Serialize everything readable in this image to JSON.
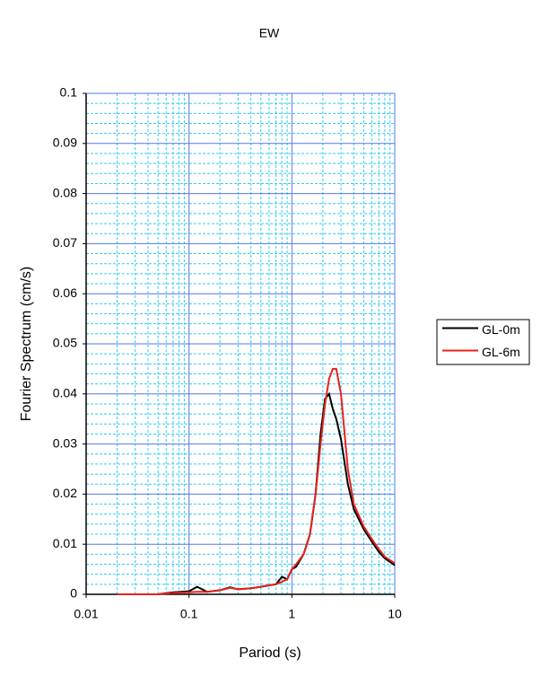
{
  "chart_data": {
    "type": "line",
    "title": "EW",
    "xlabel": "Pariod (s)",
    "ylabel": "Fourier Spectrum (cm/s)",
    "xscale": "log",
    "grid": true,
    "legend": "right",
    "xlim": [
      0.01,
      10
    ],
    "ylim": [
      0,
      0.1
    ],
    "xticks": [
      0.01,
      0.1,
      1,
      10
    ],
    "yticks": [
      0,
      0.01,
      0.02,
      0.03,
      0.04,
      0.05,
      0.06,
      0.07,
      0.08,
      0.09,
      0.1
    ],
    "xminorticks": [
      0.02,
      0.03,
      0.04,
      0.05,
      0.06,
      0.07,
      0.08,
      0.09,
      0.2,
      0.3,
      0.4,
      0.5,
      0.6,
      0.7,
      0.8,
      0.9,
      2,
      3,
      4,
      5,
      6,
      7,
      8,
      9
    ],
    "yminorticks": [
      0.002,
      0.004,
      0.006,
      0.008,
      0.012,
      0.014,
      0.016,
      0.018,
      0.022,
      0.024,
      0.026,
      0.028,
      0.032,
      0.034,
      0.036,
      0.038,
      0.042,
      0.044,
      0.046,
      0.048,
      0.052,
      0.054,
      0.056,
      0.058,
      0.062,
      0.064,
      0.066,
      0.068,
      0.072,
      0.074,
      0.076,
      0.078,
      0.082,
      0.084,
      0.086,
      0.088,
      0.092,
      0.094,
      0.096,
      0.098
    ],
    "x": [
      0.02,
      0.05,
      0.07,
      0.1,
      0.12,
      0.15,
      0.2,
      0.25,
      0.3,
      0.4,
      0.5,
      0.6,
      0.7,
      0.8,
      0.9,
      1,
      1.1,
      1.3,
      1.5,
      1.7,
      1.9,
      2.1,
      2.3,
      2.5,
      2.7,
      3,
      3.5,
      4,
      5,
      6,
      7,
      8,
      10
    ],
    "series": [
      {
        "name": "GL-0m",
        "color": "#000000",
        "values": [
          0,
          0,
          0.0004,
          0.0006,
          0.0015,
          0.0005,
          0.0008,
          0.0014,
          0.001,
          0.0012,
          0.0015,
          0.0018,
          0.002,
          0.0035,
          0.003,
          0.005,
          0.0055,
          0.008,
          0.012,
          0.02,
          0.032,
          0.039,
          0.04,
          0.037,
          0.035,
          0.031,
          0.022,
          0.017,
          0.013,
          0.0105,
          0.0085,
          0.0072,
          0.0058
        ]
      },
      {
        "name": "GL-6m",
        "color": "#e8221a",
        "values": [
          0,
          0,
          0.0003,
          0.0004,
          0.0005,
          0.0005,
          0.0008,
          0.0013,
          0.001,
          0.0012,
          0.0015,
          0.0018,
          0.002,
          0.0025,
          0.003,
          0.005,
          0.006,
          0.008,
          0.012,
          0.02,
          0.03,
          0.038,
          0.043,
          0.045,
          0.045,
          0.04,
          0.025,
          0.018,
          0.0135,
          0.011,
          0.009,
          0.0075,
          0.0062
        ]
      }
    ]
  }
}
